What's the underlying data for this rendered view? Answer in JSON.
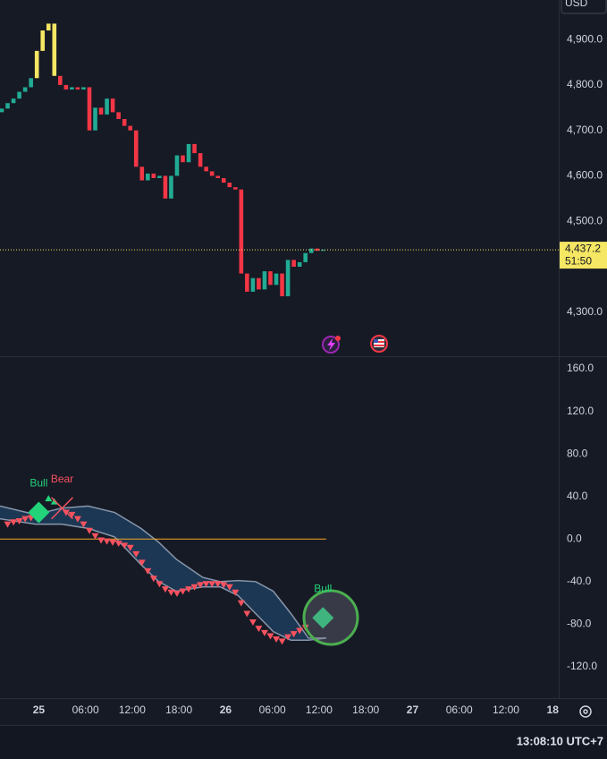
{
  "header": {
    "currency": "USD"
  },
  "clock": "13:08:10 UTC+7",
  "x_axis": {
    "xlim": [
      19.02,
      92.5
    ],
    "xticks": [
      {
        "value": 24,
        "label": "25"
      },
      {
        "value": 30,
        "label": "06:00"
      },
      {
        "value": 36,
        "label": "12:00"
      },
      {
        "value": 42,
        "label": "18:00"
      },
      {
        "value": 48,
        "label": "26"
      },
      {
        "value": 54,
        "label": "06:00"
      },
      {
        "value": 60,
        "label": "12:00"
      },
      {
        "value": 66,
        "label": "18:00"
      },
      {
        "value": 72,
        "label": "27"
      },
      {
        "value": 78,
        "label": "06:00"
      },
      {
        "value": 84,
        "label": "12:00"
      },
      {
        "value": 90,
        "label": "18"
      }
    ]
  },
  "chart_data": [
    {
      "type": "candlestick",
      "x": [
        19.25,
        20,
        20.75,
        21.5,
        22.25,
        23,
        23.75,
        24.5,
        25.25,
        26,
        26.75,
        27.5,
        28.25,
        29,
        29.75,
        30.5,
        31.25,
        32,
        32.75,
        33.5,
        34.25,
        35,
        35.75,
        36.5,
        37.25,
        38,
        38.75,
        39.5,
        40.25,
        41,
        41.75,
        42.5,
        43.25,
        44,
        44.75,
        45.5,
        46.25,
        47,
        47.75,
        48.5,
        49.25,
        50,
        50.75,
        51.5,
        52.25,
        53,
        53.75,
        54.5,
        55.25,
        56,
        56.75,
        57.5,
        58.25,
        59,
        59.75,
        60.5
      ],
      "open": [
        4740,
        4748,
        4760,
        4770,
        4785,
        4795,
        4815,
        4875,
        4920,
        4935,
        4820,
        4800,
        4790,
        4795,
        4790,
        4795,
        4700,
        4750,
        4735,
        4770,
        4740,
        4725,
        4710,
        4700,
        4620,
        4590,
        4605,
        4595,
        4600,
        4550,
        4600,
        4645,
        4630,
        4670,
        4650,
        4620,
        4610,
        4600,
        4595,
        4585,
        4575,
        4570,
        4385,
        4345,
        4375,
        4350,
        4390,
        4360,
        4385,
        4335,
        4415,
        4400,
        4410,
        4430,
        4440,
        4435
      ],
      "high": [
        4750,
        4765,
        4775,
        4790,
        4800,
        4820,
        4880,
        4930,
        4955,
        4958,
        4830,
        4805,
        4800,
        4800,
        4800,
        4800,
        4760,
        4770,
        4775,
        4775,
        4745,
        4735,
        4720,
        4705,
        4625,
        4615,
        4610,
        4610,
        4605,
        4610,
        4650,
        4660,
        4680,
        4690,
        4665,
        4630,
        4615,
        4605,
        4600,
        4590,
        4580,
        4575,
        4395,
        4380,
        4385,
        4395,
        4395,
        4395,
        4390,
        4420,
        4425,
        4420,
        4440,
        4450,
        4445,
        4445
      ],
      "low": [
        4735,
        4745,
        4755,
        4765,
        4780,
        4790,
        4810,
        4860,
        4900,
        4815,
        4720,
        4760,
        4775,
        4780,
        4770,
        4690,
        4690,
        4730,
        4730,
        4730,
        4715,
        4700,
        4695,
        4605,
        4580,
        4575,
        4590,
        4585,
        4540,
        4545,
        4590,
        4620,
        4625,
        4640,
        4615,
        4600,
        4595,
        4590,
        4580,
        4570,
        4560,
        4380,
        4330,
        4340,
        4340,
        4345,
        4350,
        4355,
        4330,
        4330,
        4395,
        4385,
        4405,
        4420,
        4430,
        4432
      ],
      "close": [
        4748,
        4760,
        4770,
        4785,
        4795,
        4815,
        4875,
        4920,
        4935,
        4820,
        4800,
        4790,
        4795,
        4790,
        4795,
        4700,
        4750,
        4735,
        4770,
        4740,
        4725,
        4710,
        4700,
        4620,
        4590,
        4605,
        4595,
        4600,
        4550,
        4600,
        4645,
        4630,
        4670,
        4650,
        4620,
        4610,
        4600,
        4595,
        4585,
        4575,
        4570,
        4385,
        4345,
        4375,
        4350,
        4390,
        4360,
        4385,
        4335,
        4415,
        4400,
        4410,
        4430,
        4440,
        4435,
        4437.2
      ],
      "colors": [
        "#22ab94",
        "#22ab94",
        "#22ab94",
        "#22ab94",
        "#22ab94",
        "#22ab94",
        "#f5e663",
        "#f5e663",
        "#f5e663",
        "#f5e663",
        "#f23645",
        "#f23645",
        "#22ab94",
        "#f23645",
        "#22ab94",
        "#f23645",
        "#22ab94",
        "#f23645",
        "#22ab94",
        "#f23645",
        "#f23645",
        "#f23645",
        "#f23645",
        "#f23645",
        "#f23645",
        "#22ab94",
        "#f23645",
        "#22ab94",
        "#f23645",
        "#22ab94",
        "#22ab94",
        "#f23645",
        "#22ab94",
        "#f23645",
        "#f23645",
        "#f23645",
        "#f23645",
        "#f23645",
        "#f23645",
        "#f23645",
        "#f23645",
        "#f23645",
        "#f23645",
        "#22ab94",
        "#f23645",
        "#22ab94",
        "#f23645",
        "#22ab94",
        "#f23645",
        "#22ab94",
        "#f23645",
        "#22ab94",
        "#22ab94",
        "#22ab94",
        "#f23645",
        "#22ab94"
      ],
      "last_price_label": "4,437.2",
      "countdown": "51:50",
      "last_price_color": "#f5e663",
      "ylim": [
        4203,
        4987
      ],
      "yticks": [
        {
          "value": 4300,
          "label": "4,300.0"
        },
        {
          "value": 4500,
          "label": "4,500.0"
        },
        {
          "value": 4600,
          "label": "4,600.0"
        },
        {
          "value": 4700,
          "label": "4,700.0"
        },
        {
          "value": 4800,
          "label": "4,800.0"
        },
        {
          "value": 4900,
          "label": "4,900.0"
        }
      ],
      "grid": true
    },
    {
      "type": "band",
      "x": [
        19.02,
        23.55,
        26.94,
        30.34,
        33.74,
        37.13,
        39.4,
        41.66,
        45.06,
        47.32,
        49.58,
        51.85,
        54.11,
        56.38,
        58.64,
        60.91
      ],
      "series": [
        {
          "color": "#8796ab",
          "values": [
            31,
            23,
            29,
            31,
            25,
            10,
            -3,
            -19,
            -36,
            -40,
            -39,
            -40,
            -49,
            -70,
            -93,
            -93
          ]
        },
        {
          "color": "#8796ab",
          "values": [
            19,
            14,
            14,
            10,
            2,
            -24,
            -40,
            -49,
            -45,
            -45,
            -53,
            -70,
            -87,
            -95,
            -95,
            -93
          ]
        }
      ],
      "band_color": "#1d3d5c",
      "down_markers": {
        "color": "#f7525f",
        "x": [
          20,
          20.75,
          21.5,
          22.25,
          23,
          27.5,
          28.25,
          29,
          29.75,
          30.5,
          31.25,
          32,
          32.75,
          33.5,
          34.25,
          35,
          35.75,
          36.5,
          37.25,
          38,
          38.75,
          39.5,
          40.25,
          41,
          41.75,
          42.5,
          43.25,
          44,
          44.75,
          45.5,
          46.25,
          47,
          47.75,
          48.5,
          49.25,
          50,
          50.75,
          51.5,
          52.25,
          53,
          53.75,
          54.5,
          55.25,
          56,
          56.75,
          57.5,
          58.25
        ],
        "values": [
          14,
          16,
          17,
          19,
          20,
          25,
          23,
          19,
          14,
          8,
          3,
          -1,
          -2,
          -3,
          -4,
          -6,
          -8,
          -14,
          -22,
          -30,
          -37,
          -42,
          -47,
          -50,
          -51,
          -49,
          -47,
          -45,
          -43,
          -42,
          -42,
          -42,
          -43,
          -45,
          -50,
          -60,
          -70,
          -78,
          -84,
          -88,
          -91,
          -94,
          -96,
          -92,
          -89,
          -86,
          -83
        ]
      },
      "up_markers": {
        "color": "#22d37a",
        "x": [
          25.25,
          26
        ],
        "values": [
          38,
          35
        ]
      },
      "signals": [
        {
          "label": "Bull",
          "x": 24,
          "value": 25,
          "color": "#22d37a",
          "shape": "diamond"
        },
        {
          "label": "Bear",
          "x": 27,
          "value": 29,
          "color": "#f7525f",
          "shape": "cross"
        },
        {
          "label": "Bull",
          "x": 60.5,
          "value": -74,
          "color": "#22d37a",
          "shape": "diamond"
        }
      ],
      "zero_line": {
        "value": 0,
        "color": "#f5a623",
        "x_end": 60.91
      },
      "ylim": [
        -149.5,
        171.8
      ],
      "yticks": [
        {
          "value": 160,
          "label": "160.0"
        },
        {
          "value": 120,
          "label": "120.0"
        },
        {
          "value": 80,
          "label": "80.0"
        },
        {
          "value": 40,
          "label": "40.0"
        },
        {
          "value": 0,
          "label": "0.0"
        },
        {
          "value": -40,
          "label": "-40.0"
        },
        {
          "value": -80,
          "label": "-80.0"
        },
        {
          "value": -120,
          "label": "-120.0"
        }
      ],
      "grid": true
    }
  ]
}
